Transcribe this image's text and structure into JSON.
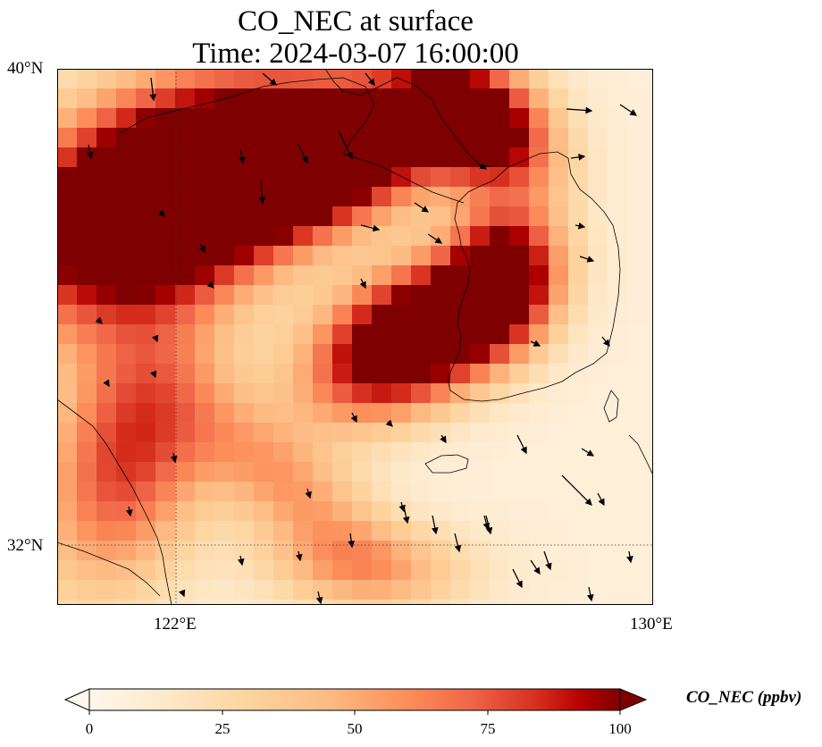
{
  "title_line1": "CO_NEC at surface",
  "title_line2": "Time: 2024-03-07 16:00:00",
  "map": {
    "extent": {
      "lon_min": 120,
      "lon_max": 130,
      "lat_min": 31,
      "lat_max": 40
    },
    "lat_ticks": [
      {
        "value": 40,
        "label": "40°N"
      },
      {
        "value": 32,
        "label": "32°N"
      }
    ],
    "lon_ticks": [
      {
        "value": 122,
        "label": "122°E"
      },
      {
        "value": 130,
        "label": "130°E"
      }
    ],
    "gridlines": {
      "lon": 122,
      "lat": 32,
      "style": "dotted"
    },
    "field_colors": {
      "low": "#fff5eb",
      "mid": "#fdae6b",
      "high": "#7f0000"
    },
    "wind_vectors": "black arrows"
  },
  "colorbar": {
    "label": "CO_NEC (ppbv)",
    "ticks": [
      "0",
      "25",
      "50",
      "75",
      "100"
    ],
    "range": [
      0,
      100
    ],
    "extend": "both",
    "cmap": "OrRd"
  }
}
